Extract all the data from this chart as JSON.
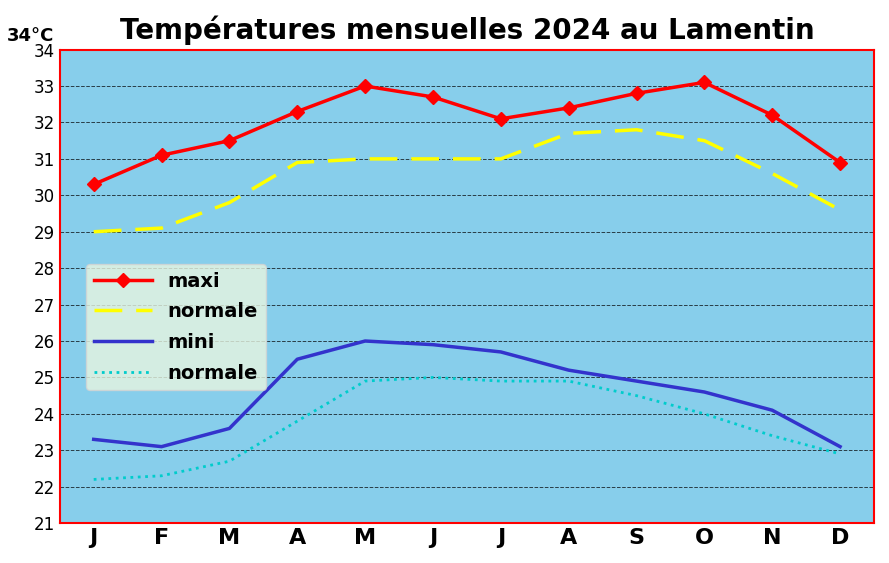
{
  "title": "Températures mensuelles 2024 au Lamentin",
  "ylim": [
    21,
    34
  ],
  "yticks": [
    21,
    22,
    23,
    24,
    25,
    26,
    27,
    28,
    29,
    30,
    31,
    32,
    33,
    34
  ],
  "months": [
    "J",
    "F",
    "M",
    "A",
    "M",
    "J",
    "J",
    "A",
    "S",
    "O",
    "N",
    "D"
  ],
  "maxi": [
    30.3,
    31.1,
    31.5,
    32.3,
    33.0,
    32.7,
    32.1,
    32.4,
    32.8,
    33.1,
    32.2,
    30.9
  ],
  "normale_maxi": [
    29.0,
    29.1,
    29.8,
    30.9,
    31.0,
    31.0,
    31.0,
    31.7,
    31.8,
    31.5,
    30.6,
    29.6
  ],
  "mini": [
    23.3,
    23.1,
    23.6,
    25.5,
    26.0,
    25.9,
    25.7,
    25.2,
    24.9,
    24.6,
    24.1,
    23.1
  ],
  "normale_mini": [
    22.2,
    22.3,
    22.7,
    23.8,
    24.9,
    25.0,
    24.9,
    24.9,
    24.5,
    24.0,
    23.4,
    22.9
  ],
  "bg_color": "#87CEEB",
  "outer_bg": "#ffffff",
  "maxi_color": "#ff0000",
  "normale_maxi_color": "#ffff00",
  "mini_color": "#3333cc",
  "normale_mini_color": "#00cccc",
  "border_color": "#ff0000",
  "title_fontsize": 20,
  "legend_bg": "#e8f5e0",
  "ylabel_text": "34°C"
}
